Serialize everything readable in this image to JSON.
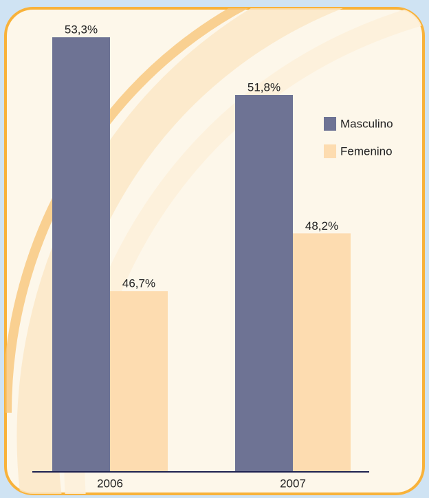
{
  "chart_data": {
    "type": "bar",
    "categories": [
      "2006",
      "2007"
    ],
    "series": [
      {
        "name": "Masculino",
        "color": "#6e7394",
        "values": [
          53.3,
          51.8
        ],
        "value_labels": [
          "53,3%",
          "51,8%"
        ]
      },
      {
        "name": "Femenino",
        "color": "#fddcb0",
        "values": [
          46.7,
          48.2
        ],
        "value_labels": [
          "46,7%",
          "48,2%"
        ]
      }
    ],
    "ylim": [
      42,
      54
    ],
    "legend": "upper right"
  }
}
